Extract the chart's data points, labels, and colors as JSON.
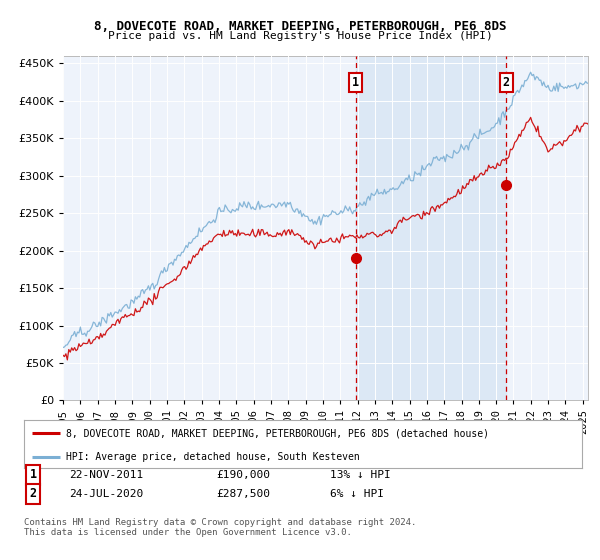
{
  "title": "8, DOVECOTE ROAD, MARKET DEEPING, PETERBOROUGH, PE6 8DS",
  "subtitle": "Price paid vs. HM Land Registry's House Price Index (HPI)",
  "legend_line1": "8, DOVECOTE ROAD, MARKET DEEPING, PETERBOROUGH, PE6 8DS (detached house)",
  "legend_line2": "HPI: Average price, detached house, South Kesteven",
  "footer": "Contains HM Land Registry data © Crown copyright and database right 2024.\nThis data is licensed under the Open Government Licence v3.0.",
  "hpi_color": "#7bafd4",
  "price_color": "#cc0000",
  "annotation_color": "#cc0000",
  "shade_color": "#dce8f5",
  "ylim": [
    0,
    460000
  ],
  "yticks": [
    0,
    50000,
    100000,
    150000,
    200000,
    250000,
    300000,
    350000,
    400000,
    450000
  ],
  "plot_background": "#eef3fb",
  "sale1_x": 2011.9,
  "sale1_y": 190000,
  "sale2_x": 2020.58,
  "sale2_y": 287500,
  "vline1_x": 2011.9,
  "vline2_x": 2020.58,
  "xmin": 1995.0,
  "xmax": 2025.3
}
